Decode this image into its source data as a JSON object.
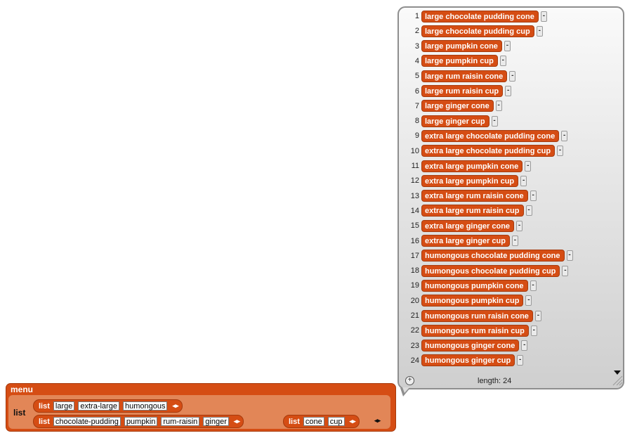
{
  "result": {
    "items": [
      {
        "index": "1",
        "label": "large chocolate pudding cone"
      },
      {
        "index": "2",
        "label": "large chocolate pudding cup"
      },
      {
        "index": "3",
        "label": "large pumpkin cone"
      },
      {
        "index": "4",
        "label": "large pumpkin cup"
      },
      {
        "index": "5",
        "label": "large rum raisin cone"
      },
      {
        "index": "6",
        "label": "large rum raisin cup"
      },
      {
        "index": "7",
        "label": "large ginger cone"
      },
      {
        "index": "8",
        "label": "large ginger cup"
      },
      {
        "index": "9",
        "label": "extra large chocolate pudding cone"
      },
      {
        "index": "10",
        "label": "extra large chocolate pudding cup"
      },
      {
        "index": "11",
        "label": "extra large pumpkin cone"
      },
      {
        "index": "12",
        "label": "extra large pumpkin cup"
      },
      {
        "index": "13",
        "label": "extra large rum raisin cone"
      },
      {
        "index": "14",
        "label": "extra large rum raisin cup"
      },
      {
        "index": "15",
        "label": "extra large ginger cone"
      },
      {
        "index": "16",
        "label": "extra large ginger cup"
      },
      {
        "index": "17",
        "label": "humongous chocolate pudding cone"
      },
      {
        "index": "18",
        "label": "humongous chocolate pudding cup"
      },
      {
        "index": "19",
        "label": "humongous pumpkin cone"
      },
      {
        "index": "20",
        "label": "humongous pumpkin cup"
      },
      {
        "index": "21",
        "label": "humongous rum raisin cone"
      },
      {
        "index": "22",
        "label": "humongous rum raisin cup"
      },
      {
        "index": "23",
        "label": "humongous ginger cone"
      },
      {
        "index": "24",
        "label": "humongous ginger cup"
      }
    ],
    "remove_glyph": "-",
    "length_text": "length: 24",
    "add_glyph": "+"
  },
  "menu_block": {
    "title": "menu",
    "outer_list_label": "list",
    "list_keyword": "list",
    "arrows": "◂▸",
    "list1": [
      "large",
      "extra-large",
      "humongous"
    ],
    "list2": [
      "chocolate-pudding",
      "pumpkin",
      "rum-raisin",
      "ginger"
    ],
    "list3": [
      "cone",
      "cup"
    ]
  },
  "colors": {
    "block": "#d54d14",
    "block_inner": "#e28657"
  },
  "icons": {
    "add": "plus-circle-icon",
    "scroll": "triangle-down-icon",
    "resize": "resize-grip-icon"
  }
}
